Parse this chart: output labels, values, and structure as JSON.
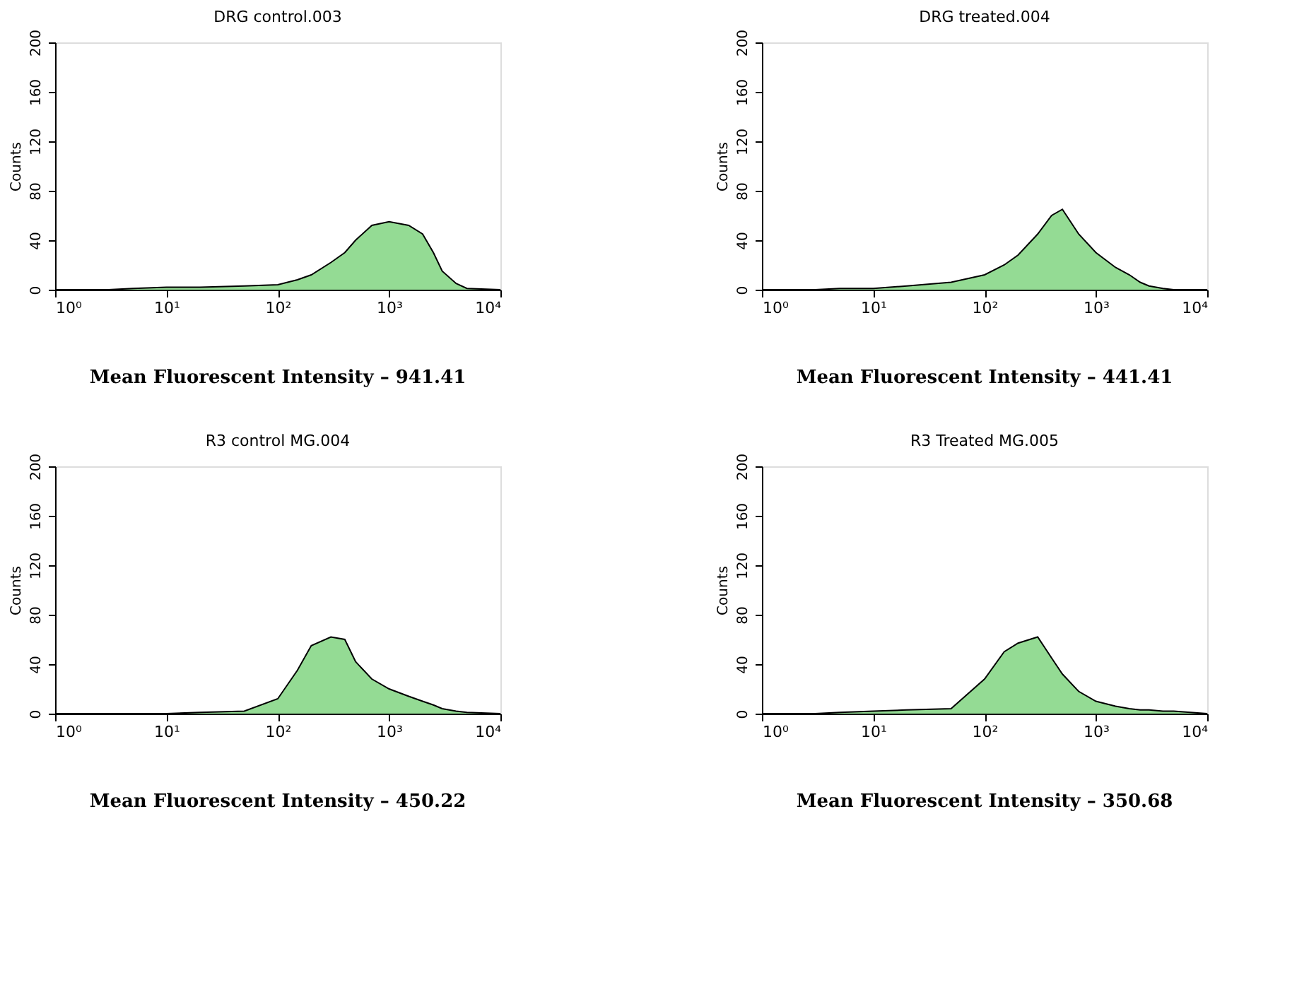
{
  "chart_data": [
    {
      "type": "area",
      "title": "DRG control.003",
      "ylabel": "Counts",
      "log": "x",
      "color": "#66cc66",
      "xlim": [
        1,
        10000
      ],
      "xticks": [
        {
          "value": 1,
          "label": "10⁰"
        },
        {
          "value": 10,
          "label": "10¹"
        },
        {
          "value": 100,
          "label": "10²"
        },
        {
          "value": 1000,
          "label": "10³"
        },
        {
          "value": 10000,
          "label": "10⁴"
        }
      ],
      "ylim": [
        0,
        200
      ],
      "yticks": [
        0,
        40,
        80,
        120,
        160,
        200
      ],
      "x": [
        1,
        3,
        5,
        10,
        20,
        50,
        100,
        150,
        200,
        300,
        400,
        500,
        700,
        1000,
        1500,
        2000,
        2500,
        3000,
        4000,
        5000,
        10000
      ],
      "values": [
        0,
        0,
        1,
        2,
        2,
        3,
        4,
        8,
        12,
        22,
        30,
        40,
        52,
        55,
        52,
        45,
        30,
        15,
        5,
        1,
        0
      ],
      "annotations": [
        "Mean Fluorescent Intensity  – 941.41"
      ]
    },
    {
      "type": "area",
      "title": "DRG treated.004",
      "ylabel": "Counts",
      "log": "x",
      "color": "#66cc66",
      "xlim": [
        1,
        10000
      ],
      "xticks": [
        {
          "value": 1,
          "label": "10⁰"
        },
        {
          "value": 10,
          "label": "10¹"
        },
        {
          "value": 100,
          "label": "10²"
        },
        {
          "value": 1000,
          "label": "10³"
        },
        {
          "value": 10000,
          "label": "10⁴"
        }
      ],
      "ylim": [
        0,
        200
      ],
      "yticks": [
        0,
        40,
        80,
        120,
        160,
        200
      ],
      "x": [
        1,
        3,
        5,
        10,
        20,
        50,
        100,
        150,
        200,
        300,
        400,
        500,
        700,
        1000,
        1500,
        2000,
        2500,
        3000,
        4000,
        5000,
        10000
      ],
      "values": [
        0,
        0,
        1,
        1,
        3,
        6,
        12,
        20,
        28,
        45,
        60,
        65,
        45,
        30,
        18,
        12,
        6,
        3,
        1,
        0,
        0
      ],
      "annotations": [
        "Mean Fluorescent Intensity  – 441.41"
      ]
    },
    {
      "type": "area",
      "title": "R3 control MG.004",
      "ylabel": "Counts",
      "log": "x",
      "color": "#66cc66",
      "xlim": [
        1,
        10000
      ],
      "xticks": [
        {
          "value": 1,
          "label": "10⁰"
        },
        {
          "value": 10,
          "label": "10¹"
        },
        {
          "value": 100,
          "label": "10²"
        },
        {
          "value": 1000,
          "label": "10³"
        },
        {
          "value": 10000,
          "label": "10⁴"
        }
      ],
      "ylim": [
        0,
        200
      ],
      "yticks": [
        0,
        40,
        80,
        120,
        160,
        200
      ],
      "x": [
        1,
        3,
        5,
        10,
        20,
        50,
        100,
        150,
        200,
        300,
        400,
        500,
        700,
        1000,
        1500,
        2000,
        2500,
        3000,
        4000,
        5000,
        10000
      ],
      "values": [
        0,
        0,
        0,
        0,
        1,
        2,
        12,
        35,
        55,
        62,
        60,
        42,
        28,
        20,
        14,
        10,
        7,
        4,
        2,
        1,
        0
      ],
      "annotations": [
        "Mean Fluorescent Intensity  – 450.22"
      ]
    },
    {
      "type": "area",
      "title": "R3 Treated MG.005",
      "ylabel": "Counts",
      "log": "x",
      "color": "#66cc66",
      "xlim": [
        1,
        10000
      ],
      "xticks": [
        {
          "value": 1,
          "label": "10⁰"
        },
        {
          "value": 10,
          "label": "10¹"
        },
        {
          "value": 100,
          "label": "10²"
        },
        {
          "value": 1000,
          "label": "10³"
        },
        {
          "value": 10000,
          "label": "10⁴"
        }
      ],
      "ylim": [
        0,
        200
      ],
      "yticks": [
        0,
        40,
        80,
        120,
        160,
        200
      ],
      "x": [
        1,
        3,
        5,
        10,
        20,
        50,
        100,
        150,
        200,
        300,
        400,
        500,
        700,
        1000,
        1500,
        2000,
        2500,
        3000,
        4000,
        5000,
        10000
      ],
      "values": [
        0,
        0,
        1,
        2,
        3,
        4,
        28,
        50,
        57,
        62,
        45,
        32,
        18,
        10,
        6,
        4,
        3,
        3,
        2,
        2,
        0
      ],
      "annotations": [
        "Mean Fluorescent Intensity  – 350.68"
      ]
    }
  ]
}
